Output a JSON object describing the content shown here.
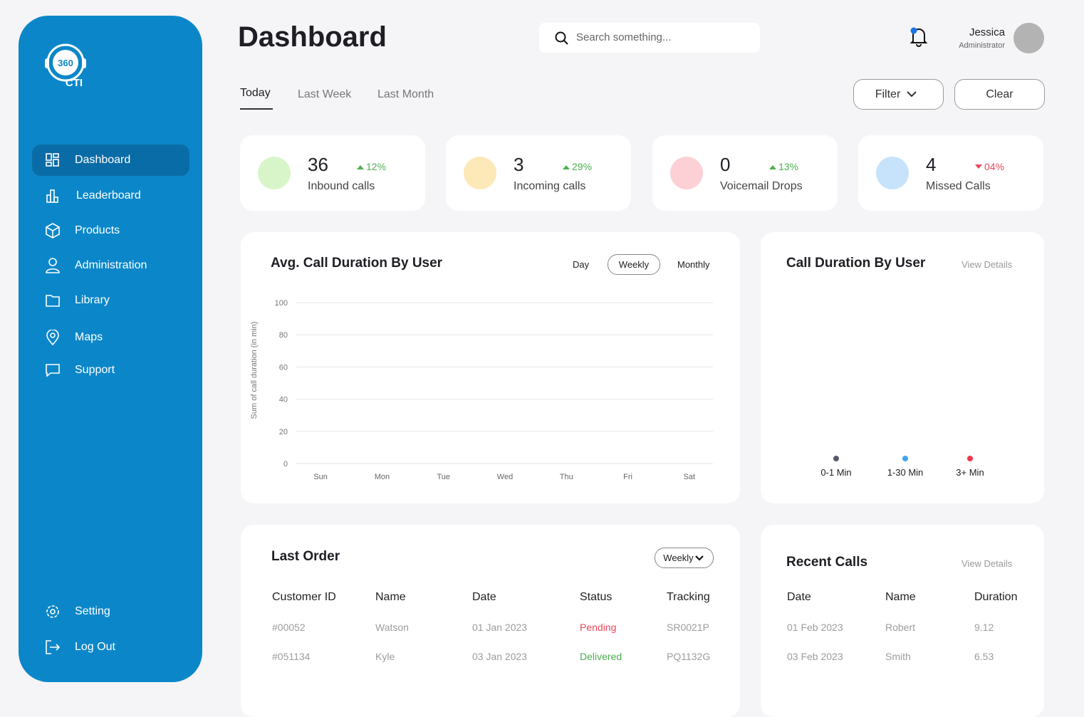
{
  "sidebar": {
    "logo_top": "360",
    "logo_bottom": "CTI",
    "nav": [
      "Dashboard",
      "Leaderboard",
      "Products",
      "Administration",
      "Library",
      "Maps",
      "Support"
    ],
    "bottom_nav": [
      "Setting",
      "Log Out"
    ]
  },
  "header": {
    "title": "Dashboard",
    "search_placeholder": "Search something...",
    "user": {
      "name": "Jessica",
      "role": "Administrator"
    }
  },
  "tabs": [
    "Today",
    "Last Week",
    "Last Month"
  ],
  "filter": "Filter",
  "clear": "Clear",
  "stats": [
    {
      "value": 36,
      "change": "12%",
      "label": "Inbound calls"
    },
    {
      "value": 3,
      "change": "29%",
      "label": "Incoming calls"
    },
    {
      "value": 0,
      "change": "13%",
      "label": "Voicemail Drops"
    },
    {
      "value": 4,
      "change": "04%",
      "label": "Missed Calls"
    }
  ],
  "avg_chart": {
    "title": "Avg. Call Duration By User",
    "periods": [
      "Day",
      "Weekly",
      "Monthly"
    ],
    "ylabel": "Sum of call duration (in min)",
    "ylim": [
      0,
      100
    ],
    "yticks": [
      0,
      20,
      40,
      60,
      80,
      100
    ],
    "categories": [
      "Sun",
      "Mon",
      "Tue",
      "Wed",
      "Thu",
      "Fri",
      "Sat"
    ]
  },
  "duration_chart": {
    "title": "Call Duration By User",
    "link": "View Details",
    "legend": [
      {
        "name": "0-1 Min",
        "color": "#565a6b"
      },
      {
        "name": "1-30 Min",
        "color": "#3ba7f0"
      },
      {
        "name": "3+ Min",
        "color": "#f0384f"
      }
    ]
  },
  "last_order": {
    "title": "Last Order",
    "period": "Weekly",
    "columns": [
      "Customer ID",
      "Name",
      "Date",
      "Status",
      "Tracking"
    ],
    "rows": [
      [
        "#00052",
        "Watson",
        "01 Jan 2023",
        "Pending",
        "SR0021P"
      ],
      [
        "#051134",
        "Kyle",
        "03 Jan 2023",
        "Delivered",
        "PQ1132G"
      ]
    ]
  },
  "recent_calls": {
    "title": "Recent Calls",
    "link": "View Details",
    "columns": [
      "Date",
      "Name",
      "Duration"
    ],
    "rows": [
      [
        "01 Feb 2023",
        "Robert",
        "9.12"
      ],
      [
        "03 Feb 2023",
        "Smith",
        "6.53"
      ]
    ]
  }
}
